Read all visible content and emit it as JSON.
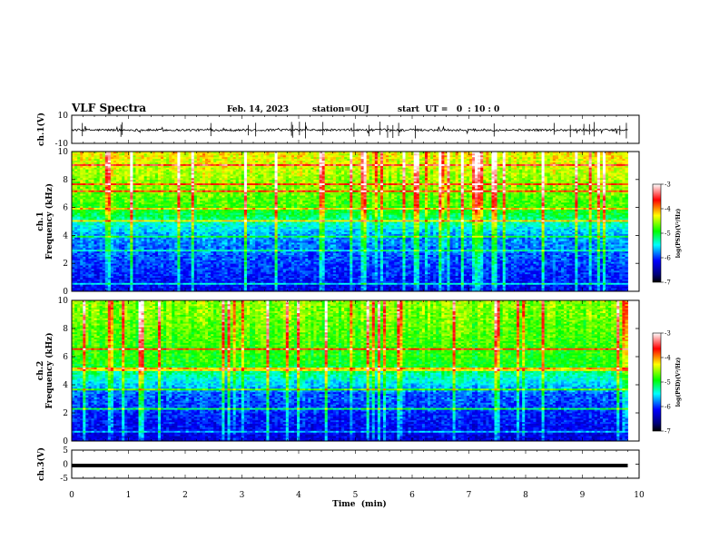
{
  "header": {
    "title": "VLF Spectra",
    "date": "Feb. 14, 2023",
    "station": "station=OUJ",
    "start_ut": "start  UT =   0  : 10 : 0"
  },
  "chart_data": [
    {
      "type": "line",
      "panel": "ch1-waveform",
      "ylabel": "ch.1(V)",
      "ylim": [
        -10,
        10
      ],
      "yticks": [
        "10",
        "-10"
      ],
      "x_range_min": [
        0,
        9.8
      ],
      "baseline": -0.5,
      "color": "#000000"
    },
    {
      "type": "heatmap",
      "panel": "ch1-spectrogram",
      "ylabel": "ch.1\nFrequency (kHz)",
      "ylim": [
        0,
        10
      ],
      "yticks": [
        "0",
        "2",
        "4",
        "6",
        "8",
        "10"
      ],
      "x_range_min": [
        0,
        9.8
      ],
      "colorbar": {
        "label": "log(PSD)(V²/Hz)",
        "range": [
          -7,
          -3
        ],
        "ticks": [
          "-3",
          "-4",
          "-5",
          "-6",
          "-7"
        ]
      }
    },
    {
      "type": "heatmap",
      "panel": "ch2-spectrogram",
      "ylabel": "ch.2\nFrequency (kHz)",
      "ylim": [
        0,
        10
      ],
      "yticks": [
        "0",
        "2",
        "4",
        "6",
        "8",
        "10"
      ],
      "x_range_min": [
        0,
        9.8
      ],
      "colorbar": {
        "label": "log(PSD)(V²/Hz)",
        "range": [
          -7,
          -3
        ],
        "ticks": [
          "-3",
          "-4",
          "-5",
          "-6",
          "-7"
        ]
      }
    },
    {
      "type": "line",
      "panel": "ch3-waveform",
      "ylabel": "ch.3(V)",
      "ylim": [
        -5,
        5
      ],
      "yticks": [
        "5",
        "0",
        "-5"
      ],
      "x_range_min": [
        0,
        9.8
      ],
      "baseline": -0.5,
      "color": "#000000"
    }
  ],
  "xaxis": {
    "label": "Time  (min)",
    "range": [
      0,
      10
    ],
    "ticks": [
      "0",
      "1",
      "2",
      "3",
      "4",
      "5",
      "6",
      "7",
      "8",
      "9",
      "10"
    ]
  }
}
